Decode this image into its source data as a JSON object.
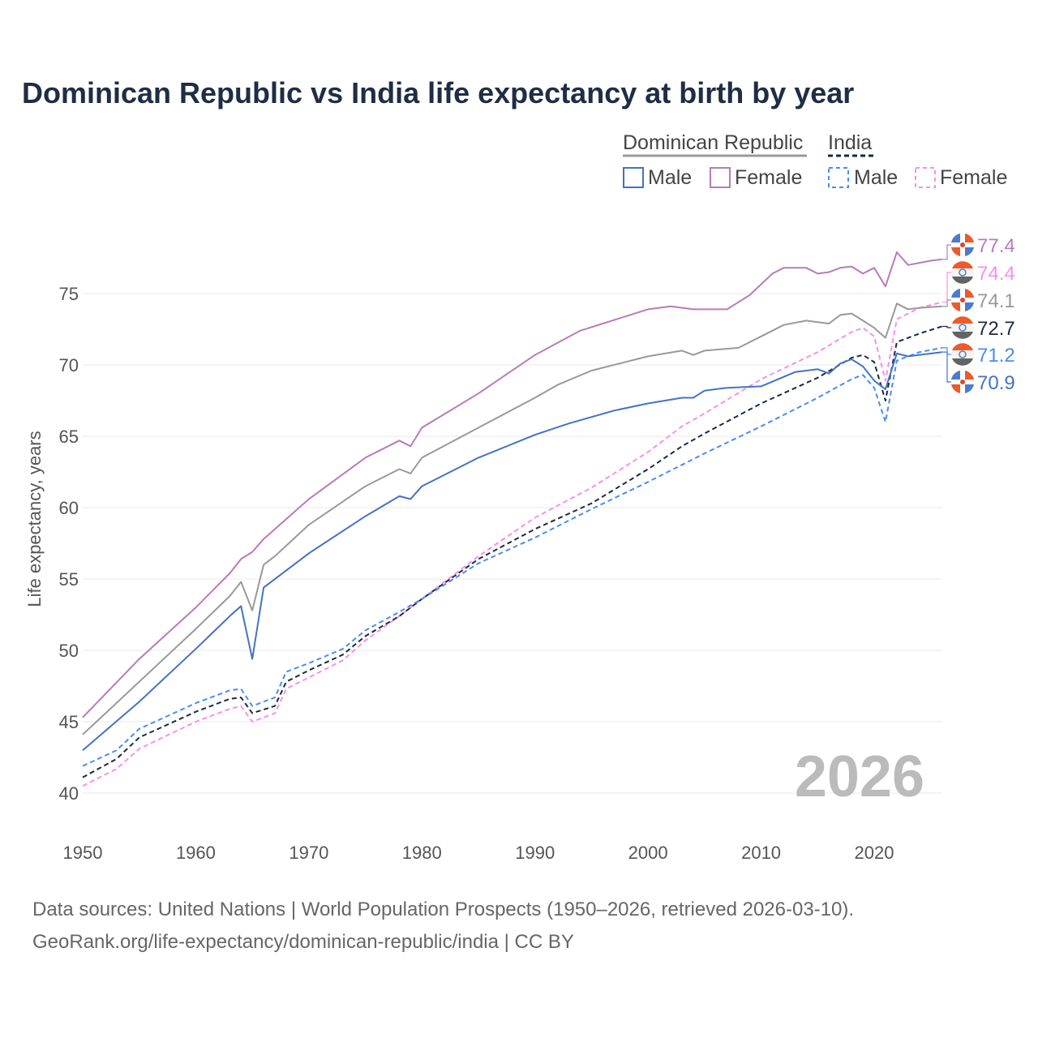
{
  "chart_data": {
    "type": "line",
    "title": "Dominican Republic vs India life expectancy at birth by year",
    "xlabel": "",
    "ylabel": "Life expectancy, years",
    "xlim": [
      1950,
      2026
    ],
    "ylim": [
      38,
      78
    ],
    "xticks": [
      "1950",
      "1960",
      "1970",
      "1980",
      "1990",
      "2000",
      "2010",
      "2020"
    ],
    "yticks": [
      "40",
      "45",
      "50",
      "55",
      "60",
      "65",
      "70",
      "75"
    ],
    "grid": true,
    "year_watermark": "2026",
    "legend": {
      "placement": "top-right",
      "groups": [
        {
          "name": "Dominican Republic",
          "items": [
            "Male",
            "Female"
          ]
        },
        {
          "name": "India",
          "items": [
            "Male",
            "Female"
          ]
        }
      ]
    },
    "series": [
      {
        "name": "Dominican Republic Female",
        "color": "#b87bbb",
        "dashed": false,
        "end_label": "77.4",
        "flag": "dr",
        "x": [
          1950,
          1955,
          1960,
          1963,
          1964,
          1965,
          1966,
          1970,
          1975,
          1978,
          1979,
          1980,
          1985,
          1990,
          1994,
          2000,
          2002,
          2004,
          2007,
          2009,
          2011,
          2012,
          2014,
          2015,
          2016,
          2017,
          2018,
          2019,
          2020,
          2021,
          2022,
          2023,
          2025,
          2026
        ],
        "y": [
          45.3,
          49.4,
          53.0,
          55.4,
          56.4,
          56.9,
          57.8,
          60.6,
          63.5,
          64.7,
          64.3,
          65.6,
          68.0,
          70.7,
          72.4,
          73.9,
          74.1,
          73.9,
          73.9,
          74.9,
          76.4,
          76.8,
          76.8,
          76.4,
          76.5,
          76.8,
          76.9,
          76.4,
          76.8,
          75.5,
          77.9,
          77.0,
          77.3,
          77.4
        ]
      },
      {
        "name": "India Female",
        "color": "#f98df0",
        "dashed": true,
        "end_label": "74.4",
        "flag": "india",
        "x": [
          1950,
          1953,
          1955,
          1960,
          1963,
          1964,
          1965,
          1967,
          1968,
          1970,
          1973,
          1975,
          1978,
          1980,
          1985,
          1990,
          1995,
          2000,
          2003,
          2005,
          2010,
          2015,
          2018,
          2019,
          2020,
          2021,
          2022,
          2024,
          2026
        ],
        "y": [
          40.5,
          41.7,
          43.1,
          45.0,
          45.9,
          46.1,
          45.0,
          45.6,
          47.3,
          48.1,
          49.3,
          50.7,
          52.4,
          53.6,
          56.6,
          59.3,
          61.4,
          63.9,
          65.7,
          66.6,
          69.0,
          70.9,
          72.3,
          72.6,
          72.0,
          68.9,
          73.2,
          74.0,
          74.4
        ]
      },
      {
        "name": "Dominican Republic Both",
        "color": "#999999",
        "dashed": false,
        "end_label": "74.1",
        "flag": "dr",
        "x": [
          1950,
          1955,
          1960,
          1963,
          1964,
          1965,
          1966,
          1967,
          1970,
          1975,
          1978,
          1979,
          1980,
          1985,
          1990,
          1992,
          1995,
          2000,
          2003,
          2004,
          2005,
          2008,
          2010,
          2012,
          2014,
          2016,
          2017,
          2018,
          2019,
          2020,
          2021,
          2022,
          2023,
          2024,
          2026
        ],
        "y": [
          44.1,
          47.8,
          51.5,
          53.8,
          54.8,
          52.8,
          56.0,
          56.6,
          58.8,
          61.5,
          62.7,
          62.4,
          63.5,
          65.6,
          67.7,
          68.6,
          69.6,
          70.6,
          71.0,
          70.7,
          71.0,
          71.2,
          72.0,
          72.8,
          73.1,
          72.9,
          73.5,
          73.6,
          73.1,
          72.6,
          71.9,
          74.3,
          73.9,
          74.0,
          74.1
        ]
      },
      {
        "name": "India Both",
        "color": "#1b2a40",
        "dashed": true,
        "end_label": "72.7",
        "flag": "india",
        "x": [
          1950,
          1953,
          1955,
          1960,
          1963,
          1964,
          1965,
          1967,
          1968,
          1970,
          1973,
          1975,
          1978,
          1980,
          1985,
          1990,
          1995,
          2000,
          2003,
          2005,
          2010,
          2015,
          2018,
          2019,
          2020,
          2021,
          2022,
          2024,
          2026
        ],
        "y": [
          41.1,
          42.4,
          43.9,
          45.7,
          46.6,
          46.7,
          45.6,
          46.1,
          47.8,
          48.6,
          49.7,
          51.0,
          52.4,
          53.6,
          56.4,
          58.5,
          60.3,
          62.7,
          64.3,
          65.2,
          67.3,
          69.1,
          70.5,
          70.7,
          70.2,
          67.5,
          71.6,
          72.2,
          72.7
        ]
      },
      {
        "name": "India Male",
        "color": "#4a8cf0",
        "dashed": true,
        "end_label": "71.2",
        "flag": "india",
        "x": [
          1950,
          1953,
          1955,
          1960,
          1963,
          1964,
          1965,
          1967,
          1968,
          1970,
          1973,
          1975,
          1978,
          1980,
          1985,
          1990,
          1995,
          2000,
          2003,
          2005,
          2010,
          2015,
          2018,
          2019,
          2020,
          2021,
          2022,
          2024,
          2026
        ],
        "y": [
          41.9,
          43.0,
          44.5,
          46.3,
          47.2,
          47.3,
          46.1,
          46.7,
          48.5,
          49.1,
          50.1,
          51.4,
          52.7,
          53.6,
          56.1,
          57.9,
          59.9,
          61.8,
          63.0,
          63.8,
          65.7,
          67.7,
          69.0,
          69.3,
          68.4,
          66.0,
          70.3,
          70.9,
          71.2
        ]
      },
      {
        "name": "Dominican Republic Male",
        "color": "#4472c4",
        "dashed": false,
        "end_label": "70.9",
        "flag": "dr",
        "x": [
          1950,
          1955,
          1960,
          1963,
          1964,
          1965,
          1966,
          1970,
          1975,
          1978,
          1979,
          1980,
          1985,
          1990,
          1993,
          1997,
          2000,
          2003,
          2004,
          2005,
          2007,
          2010,
          2013,
          2015,
          2016,
          2017,
          2018,
          2019,
          2020,
          2021,
          2022,
          2023,
          2026
        ],
        "y": [
          43.0,
          46.4,
          50.1,
          52.4,
          53.1,
          49.4,
          54.4,
          56.8,
          59.4,
          60.8,
          60.6,
          61.5,
          63.5,
          65.1,
          65.9,
          66.8,
          67.3,
          67.7,
          67.7,
          68.2,
          68.4,
          68.5,
          69.5,
          69.7,
          69.4,
          70.1,
          70.4,
          69.9,
          68.9,
          68.3,
          70.8,
          70.6,
          70.9
        ]
      }
    ]
  },
  "footer": {
    "line1": "Data sources: United Nations | World Population Prospects (1950–2026, retrieved 2026-03-10).",
    "line2": "GeoRank.org/life-expectancy/dominican-republic/india | CC BY"
  }
}
